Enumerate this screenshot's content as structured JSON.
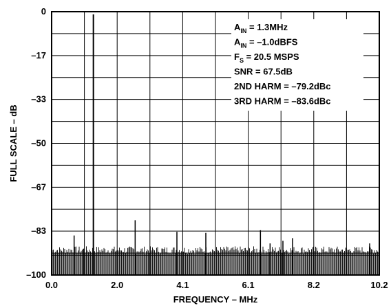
{
  "chart_data": {
    "type": "line",
    "title": "",
    "xlabel": "FREQUENCY – MHz",
    "ylabel": "FULL SCALE – dB",
    "xlim": [
      0,
      10.2
    ],
    "ylim": [
      -100,
      0
    ],
    "grid": true,
    "x_ticks": [
      0.0,
      2.04,
      4.08,
      6.12,
      8.16,
      10.2
    ],
    "x_tick_labels": [
      "0.0",
      "2.0",
      "4.1",
      "6.1",
      "8.2",
      "10.2"
    ],
    "y_ticks": [
      0,
      -16.67,
      -33.33,
      -50,
      -66.67,
      -83.33,
      -100
    ],
    "y_tick_labels": [
      "0",
      "–17",
      "–33",
      "–50",
      "–67",
      "–83",
      "–100"
    ],
    "noise_floor_db": -92.5,
    "series": [
      {
        "type": "spectral_lines",
        "points": [
          {
            "x": 0.0,
            "y": -93
          },
          {
            "x": 0.7,
            "y": -85
          },
          {
            "x": 1.0,
            "y": -90
          },
          {
            "x": 1.3,
            "y": -1.0
          },
          {
            "x": 2.6,
            "y": -79.2
          },
          {
            "x": 3.9,
            "y": -83.6
          },
          {
            "x": 4.8,
            "y": -84
          },
          {
            "x": 6.5,
            "y": -83
          },
          {
            "x": 6.8,
            "y": -88
          },
          {
            "x": 7.2,
            "y": -87
          },
          {
            "x": 7.5,
            "y": -86
          },
          {
            "x": 9.9,
            "y": -88
          }
        ]
      }
    ]
  },
  "annotation_box": {
    "lines": [
      {
        "main": "A",
        "sub": "IN",
        "rest": " = 1.3MHz"
      },
      {
        "main": "A",
        "sub": "IN",
        "rest": " = –1.0dBFS"
      },
      {
        "main": "F",
        "sub": "S",
        "rest": " = 20.5 MSPS"
      },
      {
        "main": "SNR = 67.5dB",
        "sub": "",
        "rest": ""
      },
      {
        "main": "2ND HARM = –79.2dBc",
        "sub": "",
        "rest": ""
      },
      {
        "main": "3RD HARM = –83.6dBc",
        "sub": "",
        "rest": ""
      }
    ]
  },
  "colors": {
    "background": "#ffffff",
    "ink": "#000000"
  }
}
